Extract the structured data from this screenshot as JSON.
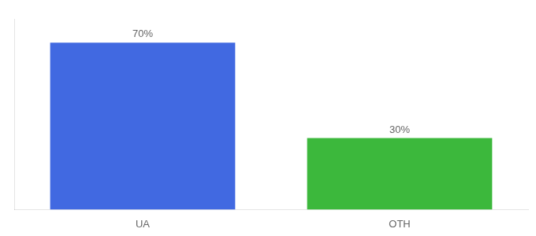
{
  "chart_data": {
    "type": "bar",
    "categories": [
      "UA",
      "OTH"
    ],
    "values": [
      70,
      30
    ],
    "colors": [
      "#4169E1",
      "#3CB83C"
    ],
    "value_labels": [
      "70%",
      "30%"
    ],
    "data_labels": true,
    "ylim": [
      0,
      80
    ],
    "yticks": [],
    "tick_labels": "x",
    "grid": false
  }
}
